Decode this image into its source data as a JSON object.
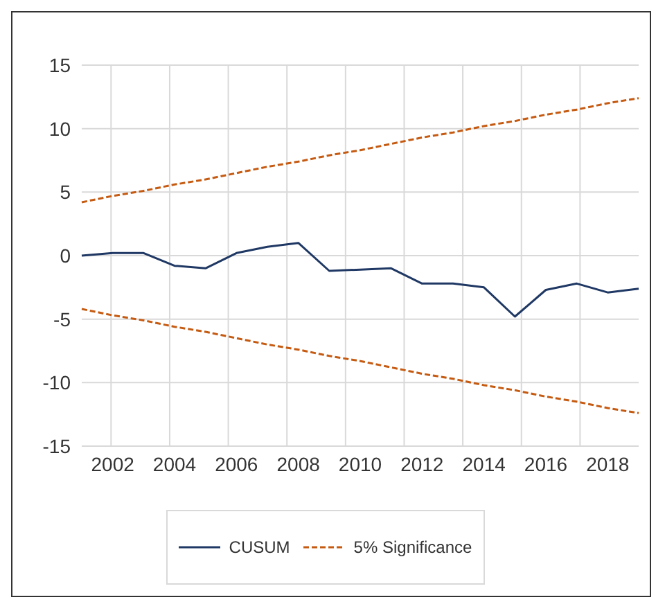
{
  "chart_data": {
    "type": "line",
    "categories": [
      null,
      "2002",
      null,
      "2004",
      null,
      "2006",
      null,
      "2008",
      null,
      "2010",
      null,
      "2012",
      null,
      "2014",
      null,
      "2016",
      null,
      "2018",
      null
    ],
    "series": [
      {
        "name": "CUSUM",
        "color": "#1f3864",
        "line_style": "solid",
        "values": [
          0.0,
          0.2,
          0.2,
          -0.8,
          -1.0,
          0.2,
          0.7,
          1.0,
          -1.2,
          -1.1,
          -1.0,
          -2.2,
          -2.2,
          -2.5,
          -4.8,
          -2.7,
          -2.2,
          -2.9,
          -2.6
        ]
      },
      {
        "name": "5% Significance",
        "color": "#c55a11",
        "line_style": "dashed",
        "values": [
          4.2,
          4.7,
          5.1,
          5.6,
          6.0,
          6.5,
          7.0,
          7.4,
          7.9,
          8.3,
          8.8,
          9.3,
          9.7,
          10.2,
          10.6,
          11.1,
          11.5,
          12.0,
          12.4
        ]
      },
      {
        "color": "#c55a11",
        "line_style": "dashed",
        "values": [
          -4.2,
          -4.7,
          -5.1,
          -5.6,
          -6.0,
          -6.5,
          -7.0,
          -7.4,
          -7.9,
          -8.3,
          -8.8,
          -9.3,
          -9.7,
          -10.2,
          -10.6,
          -11.1,
          -11.5,
          -12.0,
          -12.4
        ]
      }
    ],
    "ylim": [
      -15,
      15
    ],
    "yticks": [
      -15,
      -10,
      -5,
      0,
      5,
      10,
      15
    ],
    "grid": true,
    "legend": "bottom",
    "marker": "none"
  }
}
